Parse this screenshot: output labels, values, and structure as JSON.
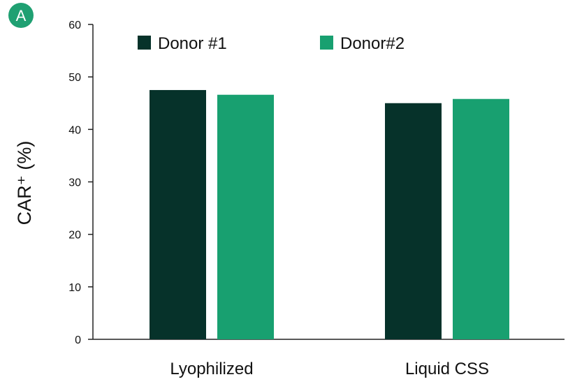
{
  "panel_label": "A",
  "chart_data": {
    "type": "bar",
    "title": "",
    "xlabel": "",
    "ylabel": "CAR⁺ (%)",
    "ylim": [
      0,
      60
    ],
    "yticks": [
      0,
      10,
      20,
      30,
      40,
      50,
      60
    ],
    "categories": [
      "Lyophilized",
      "Liquid CSS"
    ],
    "series": [
      {
        "name": "Donor #1",
        "color": "#06322a",
        "values": [
          47.5,
          45.0
        ]
      },
      {
        "name": "Donor#2",
        "color": "#18a070",
        "values": [
          46.6,
          45.8
        ]
      }
    ],
    "grid": false,
    "legend": "top"
  }
}
